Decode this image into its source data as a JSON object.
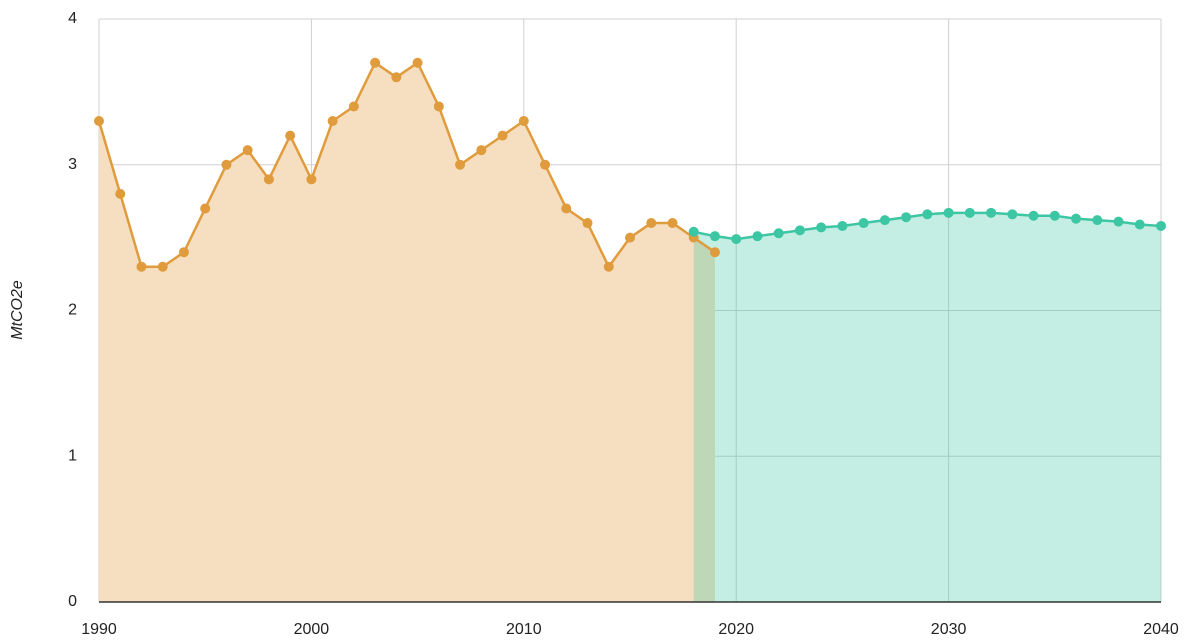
{
  "chart_data": {
    "type": "line",
    "y_label": "MtCO2e",
    "xlim": [
      1990,
      2040
    ],
    "xticks": [
      1990,
      2000,
      2010,
      2020,
      2030,
      2040
    ],
    "ylim": [
      0,
      4
    ],
    "yticks": [
      0,
      1,
      2,
      3,
      4
    ],
    "grid": true,
    "series": [
      {
        "color": "#e09b3d",
        "fill": "#f6dfc1",
        "x": [
          1990,
          1991,
          1992,
          1993,
          1994,
          1995,
          1996,
          1997,
          1998,
          1999,
          2000,
          2001,
          2002,
          2003,
          2004,
          2005,
          2006,
          2007,
          2008,
          2009,
          2010,
          2011,
          2012,
          2013,
          2014,
          2015,
          2016,
          2017,
          2018,
          2019
        ],
        "values": [
          3.3,
          2.8,
          2.3,
          2.3,
          2.4,
          2.7,
          3.0,
          3.1,
          2.9,
          3.2,
          2.9,
          3.3,
          3.4,
          3.7,
          3.6,
          3.7,
          3.4,
          3.0,
          3.1,
          3.2,
          3.3,
          3.0,
          2.7,
          2.6,
          2.3,
          2.5,
          2.6,
          2.6,
          2.5,
          2.4
        ]
      },
      {
        "color": "#3dc6a3",
        "fill": "#3dc6a3",
        "x": [
          2018,
          2019,
          2020,
          2021,
          2022,
          2023,
          2024,
          2025,
          2026,
          2027,
          2028,
          2029,
          2030,
          2031,
          2032,
          2033,
          2034,
          2035,
          2036,
          2037,
          2038,
          2039,
          2040
        ],
        "values": [
          2.54,
          2.51,
          2.49,
          2.51,
          2.53,
          2.55,
          2.57,
          2.58,
          2.6,
          2.62,
          2.64,
          2.66,
          2.67,
          2.67,
          2.67,
          2.66,
          2.65,
          2.65,
          2.63,
          2.62,
          2.61,
          2.59,
          2.58
        ]
      }
    ]
  }
}
